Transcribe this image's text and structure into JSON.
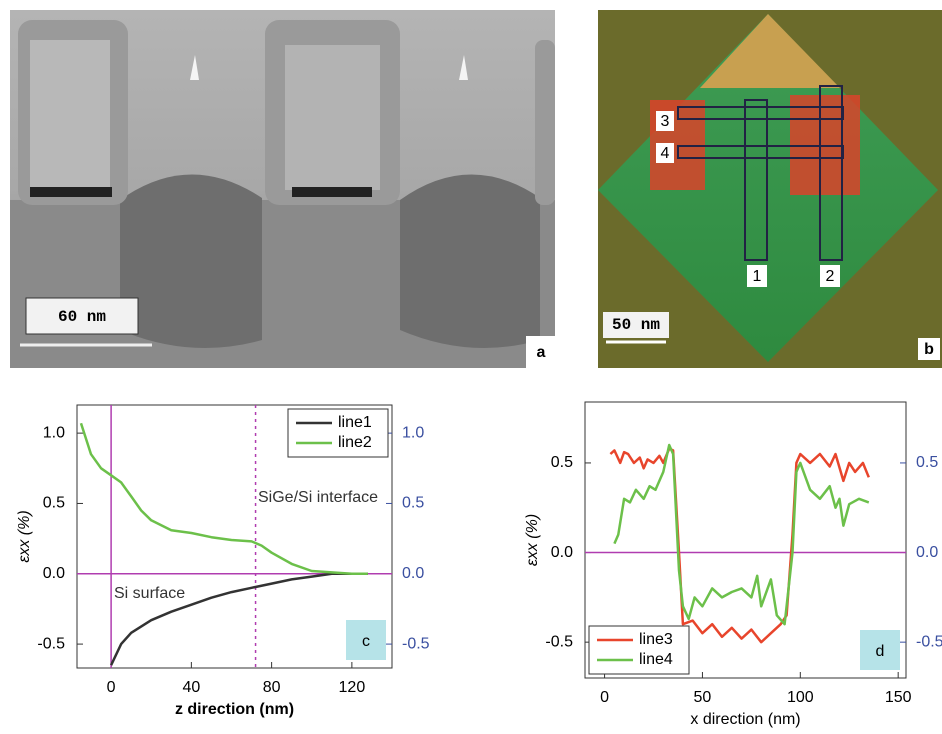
{
  "panels": {
    "a": {
      "scale_bar": "60 nm",
      "label": "a"
    },
    "b": {
      "scale_bar": "50 nm",
      "label": "b",
      "regions": [
        "1",
        "2",
        "3",
        "4"
      ]
    }
  },
  "chart_data": [
    {
      "type": "line",
      "label": "c",
      "x_label": "z direction (nm)",
      "y_label": "εxx (%)",
      "annotations": [
        "SiGe/Si interface",
        "Si surface"
      ],
      "xlim": [
        -17,
        140
      ],
      "xticks": [
        0,
        40,
        80,
        120
      ],
      "ylim": [
        -0.67,
        1.2
      ],
      "yticks": [
        -0.5,
        {
          "value": 0,
          "label": "0.0"
        },
        0.5,
        {
          "value": 1,
          "label": "1.0"
        }
      ],
      "y2lim": [
        -0.67,
        1.2
      ],
      "y2ticks": [
        -0.5,
        {
          "value": 0,
          "label": "0.0"
        },
        0.5,
        {
          "value": 1,
          "label": "1.0"
        }
      ],
      "ref_lines": [
        {
          "axis": "x",
          "value": 0,
          "color": "#b03cb0",
          "dashed": false
        },
        {
          "axis": "x",
          "value": 72,
          "color": "#b03cb0",
          "dashed": true
        },
        {
          "axis": "y",
          "value": 0,
          "color": "#b03cb0",
          "dashed": false
        }
      ],
      "legend": "upper right",
      "series": [
        {
          "name": "line1",
          "color": "#333333",
          "x": [
            0,
            5,
            10,
            20,
            30,
            40,
            50,
            60,
            70,
            80,
            90,
            100,
            110,
            120,
            128
          ],
          "values": [
            -0.65,
            -0.5,
            -0.42,
            -0.33,
            -0.27,
            -0.22,
            -0.17,
            -0.13,
            -0.1,
            -0.07,
            -0.04,
            -0.02,
            0,
            0,
            0
          ]
        },
        {
          "name": "line2",
          "color": "#6cc04a",
          "x": [
            -15,
            -10,
            -5,
            0,
            5,
            10,
            15,
            20,
            30,
            40,
            50,
            60,
            70,
            75,
            80,
            90,
            100,
            110,
            120,
            128
          ],
          "values": [
            1.07,
            0.85,
            0.75,
            0.7,
            0.65,
            0.55,
            0.45,
            0.38,
            0.31,
            0.29,
            0.26,
            0.24,
            0.23,
            0.2,
            0.15,
            0.07,
            0.02,
            0.01,
            0,
            0
          ]
        }
      ]
    },
    {
      "type": "line",
      "label": "d",
      "x_label": "x direction (nm)",
      "y_label": "εxx (%)",
      "annotations": [],
      "xlim": [
        -10,
        154
      ],
      "xticks": [
        0,
        50,
        100,
        150
      ],
      "ylim": [
        -0.7,
        0.84
      ],
      "yticks": [
        -0.5,
        {
          "value": 0,
          "label": "0.0"
        },
        0.5
      ],
      "y2lim": [
        -0.7,
        0.84
      ],
      "y2ticks": [
        -0.5,
        {
          "value": 0,
          "label": "0.0"
        },
        0.5
      ],
      "ref_lines": [
        {
          "axis": "y",
          "value": 0,
          "color": "#b03cb0",
          "dashed": false
        }
      ],
      "legend": "lower left",
      "series": [
        {
          "name": "line3",
          "color": "#e8452c",
          "x": [
            3,
            5,
            8,
            10,
            12,
            15,
            18,
            20,
            22,
            25,
            28,
            30,
            33,
            35,
            38,
            40,
            45,
            50,
            55,
            60,
            65,
            70,
            75,
            80,
            85,
            90,
            93,
            96,
            98,
            100,
            105,
            110,
            115,
            118,
            122,
            125,
            128,
            132,
            135
          ],
          "values": [
            0.55,
            0.57,
            0.5,
            0.56,
            0.55,
            0.5,
            0.53,
            0.47,
            0.52,
            0.5,
            0.54,
            0.5,
            0.58,
            0.57,
            0,
            -0.4,
            -0.38,
            -0.45,
            -0.4,
            -0.47,
            -0.42,
            -0.48,
            -0.43,
            -0.5,
            -0.45,
            -0.4,
            -0.35,
            0.1,
            0.5,
            0.55,
            0.5,
            0.55,
            0.48,
            0.55,
            0.4,
            0.5,
            0.45,
            0.5,
            0.42
          ]
        },
        {
          "name": "line4",
          "color": "#6cc04a",
          "x": [
            5,
            7,
            10,
            13,
            16,
            20,
            23,
            26,
            30,
            33,
            35,
            38,
            40,
            43,
            46,
            50,
            55,
            60,
            65,
            70,
            75,
            78,
            80,
            85,
            88,
            92,
            96,
            98,
            100,
            105,
            110,
            115,
            118,
            120,
            122,
            125,
            130,
            135
          ],
          "values": [
            0.05,
            0.1,
            0.3,
            0.28,
            0.35,
            0.3,
            0.37,
            0.35,
            0.45,
            0.6,
            0.55,
            -0.1,
            -0.3,
            -0.37,
            -0.25,
            -0.3,
            -0.2,
            -0.25,
            -0.22,
            -0.2,
            -0.25,
            -0.13,
            -0.3,
            -0.15,
            -0.35,
            -0.4,
            0,
            0.45,
            0.5,
            0.35,
            0.3,
            0.37,
            0.25,
            0.3,
            0.15,
            0.27,
            0.3,
            0.28
          ]
        }
      ]
    }
  ]
}
